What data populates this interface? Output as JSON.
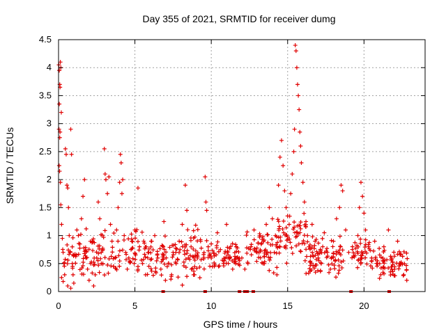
{
  "chart_data": {
    "type": "scatter",
    "title": "Day 355 of 2021, SRMTID for receiver dumg",
    "xlabel": "GPS time / hours",
    "ylabel": "SRMTID / TECUs",
    "xlim": [
      0,
      24
    ],
    "ylim": [
      0,
      4.5
    ],
    "grid": true,
    "color": "#e00000",
    "x_ticks": [
      {
        "value": 0,
        "label": "0"
      },
      {
        "value": 5,
        "label": "5"
      },
      {
        "value": 10,
        "label": "10"
      },
      {
        "value": 15,
        "label": "15"
      },
      {
        "value": 20,
        "label": "20"
      }
    ],
    "y_ticks": [
      {
        "value": 0,
        "label": "0"
      },
      {
        "value": 0.5,
        "label": "0.5"
      },
      {
        "value": 1,
        "label": "1"
      },
      {
        "value": 1.5,
        "label": "1.5"
      },
      {
        "value": 2,
        "label": "2"
      },
      {
        "value": 2.5,
        "label": "2.5"
      },
      {
        "value": 3,
        "label": "3"
      },
      {
        "value": 3.5,
        "label": "3.5"
      },
      {
        "value": 4,
        "label": "4"
      },
      {
        "value": 4.5,
        "label": "4.5"
      }
    ],
    "series": [
      {
        "name": "SRMTID",
        "marker": "+",
        "points": [
          [
            0.02,
            4.05
          ],
          [
            0.05,
            3.95
          ],
          [
            0.08,
            3.7
          ],
          [
            0.1,
            3.65
          ],
          [
            0.12,
            4.1
          ],
          [
            0.15,
            4.0
          ],
          [
            0.18,
            3.2
          ],
          [
            0.05,
            3.35
          ],
          [
            0.03,
            2.9
          ],
          [
            0.08,
            2.75
          ],
          [
            0.1,
            2.85
          ],
          [
            0.04,
            2.25
          ],
          [
            0.07,
            2.15
          ],
          [
            0.12,
            1.95
          ],
          [
            0.15,
            1.55
          ],
          [
            0.2,
            1.2
          ],
          [
            0.25,
            0.95
          ],
          [
            0.3,
            0.7
          ],
          [
            0.35,
            0.5
          ],
          [
            0.4,
            0.3
          ],
          [
            0.2,
            0.25
          ],
          [
            0.3,
            0.18
          ],
          [
            0.45,
            2.55
          ],
          [
            0.5,
            2.45
          ],
          [
            0.55,
            1.9
          ],
          [
            0.6,
            1.85
          ],
          [
            0.8,
            2.9
          ],
          [
            0.85,
            2.45
          ],
          [
            0.65,
            1.5
          ],
          [
            0.7,
            1.0
          ],
          [
            0.75,
            0.7
          ],
          [
            0.9,
            0.5
          ],
          [
            0.95,
            0.3
          ],
          [
            1.0,
            0.15
          ],
          [
            0.6,
            0.1
          ],
          [
            0.8,
            0.06
          ],
          [
            1.2,
            1.1
          ],
          [
            1.3,
            1.0
          ],
          [
            1.4,
            0.85
          ],
          [
            1.5,
            1.3
          ],
          [
            1.6,
            1.7
          ],
          [
            1.7,
            2.0
          ],
          [
            1.8,
            0.6
          ],
          [
            1.9,
            0.4
          ],
          [
            2.0,
            0.2
          ],
          [
            2.1,
            0.5
          ],
          [
            2.2,
            0.9
          ],
          [
            2.3,
            0.1
          ],
          [
            2.4,
            0.3
          ],
          [
            2.5,
            0.6
          ],
          [
            2.6,
            1.6
          ],
          [
            2.7,
            1.3
          ],
          [
            2.8,
            0.5
          ],
          [
            2.9,
            0.75
          ],
          [
            3.0,
            2.55
          ],
          [
            3.05,
            2.1
          ],
          [
            3.1,
            2.0
          ],
          [
            3.2,
            1.75
          ],
          [
            3.3,
            2.05
          ],
          [
            3.4,
            1.2
          ],
          [
            3.5,
            0.9
          ],
          [
            3.6,
            0.45
          ],
          [
            3.7,
            0.6
          ],
          [
            3.8,
            1.1
          ],
          [
            3.9,
            1.5
          ],
          [
            4.0,
            1.95
          ],
          [
            4.05,
            2.45
          ],
          [
            4.1,
            2.3
          ],
          [
            4.15,
            1.75
          ],
          [
            4.2,
            2.0
          ],
          [
            4.3,
            1.0
          ],
          [
            4.4,
            0.7
          ],
          [
            4.5,
            0.4
          ],
          [
            4.6,
            0.6
          ],
          [
            4.8,
            0.9
          ],
          [
            5.0,
            1.1
          ],
          [
            5.2,
            1.85
          ],
          [
            5.3,
            0.8
          ],
          [
            5.5,
            0.5
          ],
          [
            5.7,
            0.3
          ],
          [
            5.9,
            0.7
          ],
          [
            6.1,
            0.9
          ],
          [
            6.3,
            1.0
          ],
          [
            6.5,
            0.6
          ],
          [
            6.7,
            0.4
          ],
          [
            6.9,
            1.25
          ],
          [
            7.0,
            0.2
          ],
          [
            7.2,
            0.5
          ],
          [
            7.4,
            0.3
          ],
          [
            7.5,
            0.7
          ],
          [
            7.7,
            0.5
          ],
          [
            7.9,
            0.9
          ],
          [
            8.1,
            1.2
          ],
          [
            8.3,
            1.9
          ],
          [
            8.4,
            1.45
          ],
          [
            8.5,
            0.6
          ],
          [
            8.7,
            0.4
          ],
          [
            8.9,
            0.3
          ],
          [
            9.1,
            0.6
          ],
          [
            9.3,
            0.9
          ],
          [
            9.6,
            2.05
          ],
          [
            9.65,
            1.6
          ],
          [
            9.7,
            1.45
          ],
          [
            9.8,
            0.8
          ],
          [
            10.0,
            0.6
          ],
          [
            10.2,
            0.45
          ],
          [
            10.4,
            1.05
          ],
          [
            10.6,
            0.75
          ],
          [
            10.8,
            0.5
          ],
          [
            11.0,
            1.2
          ],
          [
            11.2,
            0.6
          ],
          [
            11.4,
            0.4
          ],
          [
            11.6,
            0.5
          ],
          [
            12.0,
            0.6
          ],
          [
            12.2,
            0.4
          ],
          [
            12.4,
            0.5
          ],
          [
            12.6,
            0.8
          ],
          [
            12.8,
            1.1
          ],
          [
            13.0,
            0.7
          ],
          [
            13.2,
            1.0
          ],
          [
            13.4,
            0.5
          ],
          [
            13.6,
            1.2
          ],
          [
            13.8,
            1.5
          ],
          [
            14.0,
            1.3
          ],
          [
            14.2,
            1.0
          ],
          [
            14.3,
            0.3
          ],
          [
            14.4,
            1.9
          ],
          [
            14.5,
            2.4
          ],
          [
            14.6,
            2.7
          ],
          [
            14.7,
            2.25
          ],
          [
            14.8,
            1.8
          ],
          [
            14.9,
            1.5
          ],
          [
            15.0,
            1.35
          ],
          [
            15.1,
            1.2
          ],
          [
            15.2,
            1.75
          ],
          [
            15.3,
            2.1
          ],
          [
            15.4,
            2.5
          ],
          [
            15.45,
            2.9
          ],
          [
            15.5,
            4.4
          ],
          [
            15.55,
            4.3
          ],
          [
            15.6,
            4.0
          ],
          [
            15.65,
            3.7
          ],
          [
            15.7,
            3.5
          ],
          [
            15.75,
            3.25
          ],
          [
            15.8,
            2.85
          ],
          [
            15.85,
            2.6
          ],
          [
            15.9,
            2.3
          ],
          [
            16.0,
            1.95
          ],
          [
            16.1,
            1.6
          ],
          [
            16.2,
            1.25
          ],
          [
            16.3,
            1.0
          ],
          [
            16.4,
            0.8
          ],
          [
            16.6,
            1.2
          ],
          [
            16.8,
            0.9
          ],
          [
            17.0,
            0.6
          ],
          [
            17.2,
            0.5
          ],
          [
            17.4,
            1.05
          ],
          [
            17.6,
            0.7
          ],
          [
            17.8,
            0.4
          ],
          [
            18.0,
            0.9
          ],
          [
            18.2,
            1.3
          ],
          [
            18.4,
            1.5
          ],
          [
            18.5,
            1.9
          ],
          [
            18.6,
            1.8
          ],
          [
            18.8,
            1.1
          ],
          [
            19.0,
            0.7
          ],
          [
            19.6,
            1.0
          ],
          [
            19.7,
            1.5
          ],
          [
            19.8,
            1.95
          ],
          [
            19.9,
            1.7
          ],
          [
            20.0,
            1.4
          ],
          [
            20.1,
            1.1
          ],
          [
            20.3,
            0.8
          ],
          [
            20.5,
            0.6
          ],
          [
            20.7,
            0.9
          ],
          [
            20.9,
            0.5
          ],
          [
            21.1,
            0.3
          ],
          [
            21.3,
            0.8
          ],
          [
            21.6,
            1.1
          ],
          [
            21.8,
            0.6
          ],
          [
            22.0,
            0.4
          ],
          [
            22.2,
            0.9
          ],
          [
            22.4,
            0.5
          ],
          [
            22.6,
            0.3
          ],
          [
            22.8,
            0.2
          ]
        ]
      }
    ],
    "dense_bands": [
      {
        "x0": 0.25,
        "x1": 9.4,
        "ymin": 0.05,
        "ymax": 1.25,
        "weight": 26
      },
      {
        "x0": 9.5,
        "x1": 11.9,
        "ymin": 0.25,
        "ymax": 1.05,
        "weight": 28
      },
      {
        "x0": 12.3,
        "x1": 14.3,
        "ymin": 0.25,
        "ymax": 1.2,
        "weight": 30
      },
      {
        "x0": 14.3,
        "x1": 16.2,
        "ymin": 0.4,
        "ymax": 1.6,
        "weight": 32
      },
      {
        "x0": 16.2,
        "x1": 18.7,
        "ymin": 0.1,
        "ymax": 1.15,
        "weight": 34
      },
      {
        "x0": 19.2,
        "x1": 21.0,
        "ymin": 0.25,
        "ymax": 1.1,
        "weight": 28
      },
      {
        "x0": 21.0,
        "x1": 22.9,
        "ymin": 0.1,
        "ymax": 0.9,
        "weight": 30
      }
    ],
    "baseline_markers": [
      6.85,
      9.6,
      11.85,
      12.2,
      12.35,
      12.75,
      19.15,
      21.65
    ]
  }
}
